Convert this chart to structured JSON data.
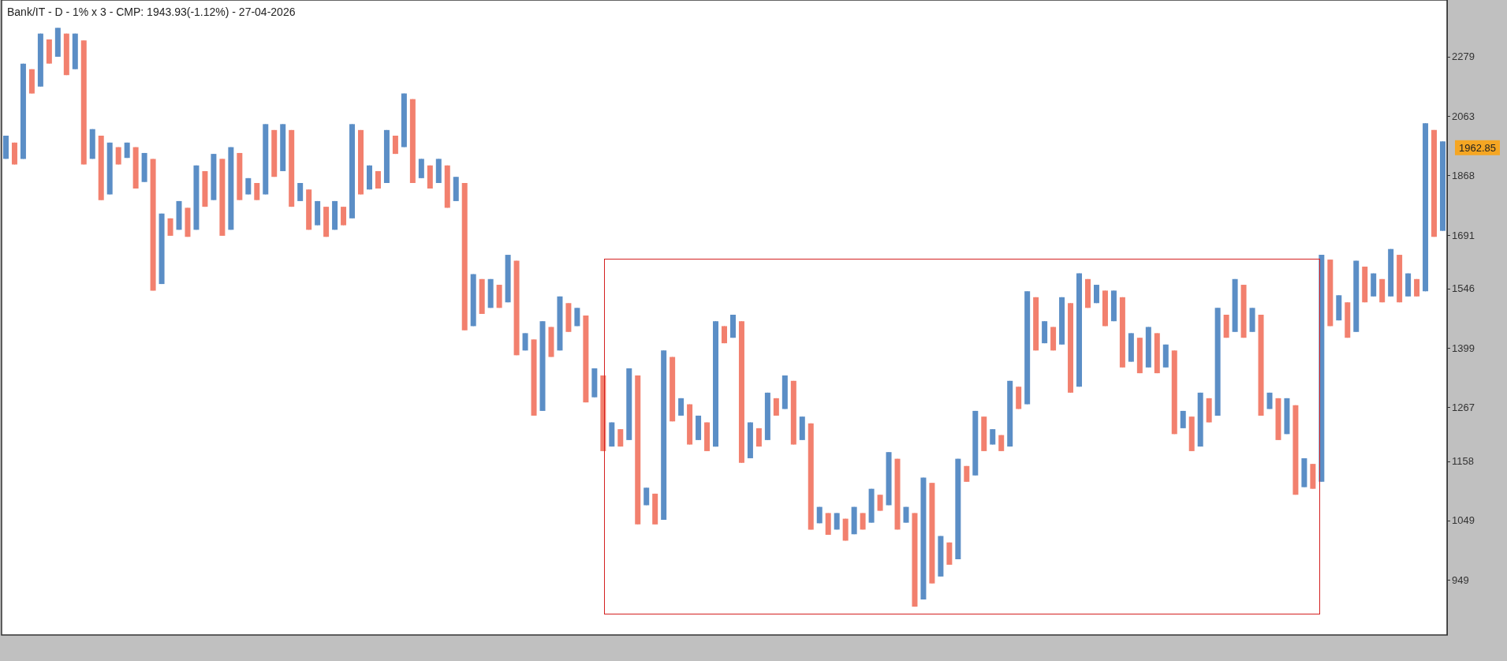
{
  "chart_data": {
    "type": "candlestick",
    "title": "Bank/IT - D - 1% x 3 - CMP: 1943.93(-1.12%) - 27-04-2026",
    "categories": [
      null,
      null,
      null,
      null,
      null,
      null,
      null,
      null,
      null,
      null,
      null,
      null,
      null,
      null,
      null,
      null,
      null,
      null,
      null,
      null,
      null,
      null,
      null,
      null,
      null,
      null,
      null,
      null,
      null,
      null,
      null,
      null,
      null,
      null,
      null,
      null,
      null,
      null,
      null,
      null,
      null,
      null,
      null,
      null,
      null,
      null,
      null,
      null,
      null,
      null,
      null,
      null,
      null,
      null,
      null,
      null,
      null,
      null,
      null,
      null,
      null,
      null,
      null,
      null,
      null,
      null,
      null,
      null,
      null,
      null,
      null,
      null,
      null,
      null,
      null,
      null,
      null,
      null,
      null,
      null,
      null,
      null,
      null,
      null,
      null,
      null,
      null,
      null,
      null,
      null,
      null,
      null,
      null,
      null,
      null,
      null,
      null,
      null,
      null,
      null,
      null,
      null,
      null,
      null,
      null,
      null,
      null,
      null,
      null,
      null,
      null,
      null,
      null,
      null,
      null,
      null,
      null,
      null,
      null,
      null,
      null,
      null,
      null,
      null,
      null,
      null,
      null,
      null,
      null,
      null,
      null,
      null,
      null,
      null,
      null,
      null,
      null,
      null,
      null,
      null,
      null,
      null,
      null,
      null,
      null,
      null,
      null,
      null,
      null,
      null,
      null,
      null,
      null,
      null,
      null,
      null,
      null,
      null,
      null,
      null,
      null,
      null,
      null,
      null,
      null,
      null,
      null
    ],
    "ohlc": [
      [
        1921,
        1997,
        1921,
        1997
      ],
      [
        1974,
        1974,
        1903,
        1903
      ],
      [
        1921,
        2253,
        1921,
        2253
      ],
      [
        2232,
        2232,
        2143,
        2143
      ],
      [
        2168,
        2369,
        2168,
        2369
      ],
      [
        2346,
        2346,
        2253,
        2253
      ],
      [
        2279,
        2392,
        2279,
        2392
      ],
      [
        2369,
        2369,
        2210,
        2210
      ],
      [
        2232,
        2369,
        2232,
        2369
      ],
      [
        2342,
        2342,
        1903,
        1903
      ],
      [
        1921,
        2019,
        1921,
        2019
      ],
      [
        1997,
        1997,
        1793,
        1793
      ],
      [
        1810,
        1974,
        1810,
        1974
      ],
      [
        1959,
        1959,
        1903,
        1903
      ],
      [
        1924,
        1974,
        1924,
        1974
      ],
      [
        1959,
        1959,
        1828,
        1828
      ],
      [
        1848,
        1940,
        1848,
        1940
      ],
      [
        1921,
        1921,
        1541,
        1541
      ],
      [
        1558,
        1753,
        1558,
        1753
      ],
      [
        1739,
        1739,
        1689,
        1689
      ],
      [
        1706,
        1790,
        1706,
        1790
      ],
      [
        1770,
        1770,
        1686,
        1686
      ],
      [
        1706,
        1900,
        1706,
        1900
      ],
      [
        1882,
        1882,
        1773,
        1773
      ],
      [
        1793,
        1937,
        1793,
        1937
      ],
      [
        1921,
        1921,
        1689,
        1689
      ],
      [
        1706,
        1959,
        1706,
        1959
      ],
      [
        1940,
        1940,
        1793,
        1793
      ],
      [
        1810,
        1860,
        1810,
        1860
      ],
      [
        1845,
        1845,
        1793,
        1793
      ],
      [
        1810,
        2036,
        1810,
        2036
      ],
      [
        2016,
        2016,
        1864,
        1864
      ],
      [
        1882,
        2036,
        1882,
        2036
      ],
      [
        2016,
        2016,
        1773,
        1773
      ],
      [
        1790,
        1845,
        1790,
        1845
      ],
      [
        1825,
        1825,
        1706,
        1706
      ],
      [
        1719,
        1790,
        1719,
        1790
      ],
      [
        1773,
        1773,
        1686,
        1686
      ],
      [
        1706,
        1790,
        1706,
        1790
      ],
      [
        1773,
        1773,
        1719,
        1719
      ],
      [
        1739,
        2036,
        1739,
        2036
      ],
      [
        2016,
        2016,
        1810,
        1810
      ],
      [
        1825,
        1900,
        1825,
        1900
      ],
      [
        1882,
        1882,
        1828,
        1828
      ],
      [
        1845,
        2016,
        1845,
        2016
      ],
      [
        1997,
        1997,
        1937,
        1937
      ],
      [
        1959,
        2143,
        1959,
        2143
      ],
      [
        2123,
        2123,
        1845,
        1845
      ],
      [
        1860,
        1921,
        1860,
        1921
      ],
      [
        1900,
        1900,
        1828,
        1828
      ],
      [
        1845,
        1921,
        1845,
        1921
      ],
      [
        1900,
        1900,
        1770,
        1770
      ],
      [
        1790,
        1864,
        1790,
        1864
      ],
      [
        1845,
        1845,
        1442,
        1442
      ],
      [
        1452,
        1584,
        1452,
        1584
      ],
      [
        1571,
        1571,
        1482,
        1482
      ],
      [
        1497,
        1571,
        1497,
        1571
      ],
      [
        1556,
        1556,
        1497,
        1497
      ],
      [
        1511,
        1636,
        1511,
        1636
      ],
      [
        1620,
        1620,
        1383,
        1383
      ],
      [
        1394,
        1435,
        1394,
        1435
      ],
      [
        1420,
        1420,
        1250,
        1250
      ],
      [
        1260,
        1464,
        1260,
        1464
      ],
      [
        1450,
        1450,
        1379,
        1379
      ],
      [
        1394,
        1526,
        1394,
        1526
      ],
      [
        1509,
        1509,
        1438,
        1438
      ],
      [
        1452,
        1497,
        1452,
        1497
      ],
      [
        1478,
        1478,
        1278,
        1278
      ],
      [
        1289,
        1353,
        1289,
        1353
      ],
      [
        1337,
        1337,
        1178,
        1178
      ],
      [
        1187,
        1236,
        1187,
        1236
      ],
      [
        1222,
        1222,
        1187,
        1187
      ],
      [
        1200,
        1353,
        1200,
        1353
      ],
      [
        1337,
        1337,
        1042,
        1042
      ],
      [
        1076,
        1108,
        1076,
        1108
      ],
      [
        1097,
        1097,
        1042,
        1042
      ],
      [
        1050,
        1394,
        1050,
        1394
      ],
      [
        1379,
        1379,
        1238,
        1238
      ],
      [
        1250,
        1287,
        1250,
        1287
      ],
      [
        1274,
        1274,
        1191,
        1191
      ],
      [
        1200,
        1250,
        1200,
        1250
      ],
      [
        1236,
        1236,
        1178,
        1178
      ],
      [
        1187,
        1464,
        1187,
        1464
      ],
      [
        1452,
        1452,
        1411,
        1411
      ],
      [
        1424,
        1480,
        1424,
        1480
      ],
      [
        1464,
        1464,
        1155,
        1155
      ],
      [
        1164,
        1236,
        1164,
        1236
      ],
      [
        1224,
        1224,
        1187,
        1187
      ],
      [
        1200,
        1299,
        1200,
        1299
      ],
      [
        1287,
        1287,
        1250,
        1250
      ],
      [
        1264,
        1337,
        1264,
        1337
      ],
      [
        1325,
        1325,
        1191,
        1191
      ],
      [
        1200,
        1248,
        1200,
        1248
      ],
      [
        1234,
        1234,
        1033,
        1033
      ],
      [
        1044,
        1073,
        1044,
        1073
      ],
      [
        1062,
        1062,
        1024,
        1024
      ],
      [
        1033,
        1062,
        1033,
        1062
      ],
      [
        1052,
        1052,
        1014,
        1014
      ],
      [
        1025,
        1073,
        1025,
        1073
      ],
      [
        1062,
        1062,
        1033,
        1033
      ],
      [
        1045,
        1106,
        1045,
        1106
      ],
      [
        1095,
        1095,
        1066,
        1066
      ],
      [
        1076,
        1176,
        1076,
        1176
      ],
      [
        1163,
        1163,
        1033,
        1033
      ],
      [
        1045,
        1073,
        1045,
        1073
      ],
      [
        1062,
        1062,
        908,
        908
      ],
      [
        919,
        1127,
        919,
        1127
      ],
      [
        1117,
        1117,
        944,
        944
      ],
      [
        955,
        1022,
        955,
        1022
      ],
      [
        1011,
        1011,
        974,
        974
      ],
      [
        983,
        1163,
        983,
        1163
      ],
      [
        1149,
        1149,
        1119,
        1119
      ],
      [
        1131,
        1260,
        1131,
        1260
      ],
      [
        1248,
        1248,
        1178,
        1178
      ],
      [
        1191,
        1222,
        1191,
        1222
      ],
      [
        1210,
        1210,
        1178,
        1178
      ],
      [
        1187,
        1325,
        1187,
        1325
      ],
      [
        1312,
        1312,
        1264,
        1264
      ],
      [
        1274,
        1539,
        1274,
        1539
      ],
      [
        1524,
        1524,
        1394,
        1394
      ],
      [
        1411,
        1464,
        1411,
        1464
      ],
      [
        1450,
        1450,
        1394,
        1394
      ],
      [
        1408,
        1524,
        1408,
        1524
      ],
      [
        1509,
        1509,
        1299,
        1299
      ],
      [
        1312,
        1586,
        1312,
        1586
      ],
      [
        1571,
        1571,
        1497,
        1497
      ],
      [
        1509,
        1556,
        1509,
        1556
      ],
      [
        1541,
        1541,
        1452,
        1452
      ],
      [
        1464,
        1541,
        1464,
        1541
      ],
      [
        1524,
        1524,
        1355,
        1355
      ],
      [
        1368,
        1435,
        1368,
        1435
      ],
      [
        1424,
        1424,
        1342,
        1342
      ],
      [
        1355,
        1450,
        1355,
        1450
      ],
      [
        1435,
        1435,
        1342,
        1342
      ],
      [
        1355,
        1408,
        1355,
        1408
      ],
      [
        1394,
        1394,
        1212,
        1212
      ],
      [
        1224,
        1260,
        1224,
        1260
      ],
      [
        1248,
        1248,
        1178,
        1178
      ],
      [
        1187,
        1299,
        1187,
        1299
      ],
      [
        1287,
        1287,
        1236,
        1236
      ],
      [
        1250,
        1497,
        1250,
        1497
      ],
      [
        1480,
        1480,
        1424,
        1424
      ],
      [
        1438,
        1571,
        1438,
        1571
      ],
      [
        1556,
        1556,
        1424,
        1424
      ],
      [
        1438,
        1497,
        1438,
        1497
      ],
      [
        1480,
        1480,
        1250,
        1250
      ],
      [
        1264,
        1299,
        1264,
        1299
      ],
      [
        1287,
        1287,
        1200,
        1200
      ],
      [
        1212,
        1287,
        1212,
        1287
      ],
      [
        1272,
        1272,
        1095,
        1095
      ],
      [
        1109,
        1164,
        1109,
        1164
      ],
      [
        1153,
        1153,
        1106,
        1106
      ],
      [
        1119,
        1636,
        1119,
        1636
      ],
      [
        1623,
        1623,
        1452,
        1452
      ],
      [
        1466,
        1529,
        1466,
        1529
      ],
      [
        1511,
        1511,
        1424,
        1424
      ],
      [
        1438,
        1620,
        1438,
        1620
      ],
      [
        1604,
        1604,
        1511,
        1511
      ],
      [
        1526,
        1586,
        1526,
        1586
      ],
      [
        1571,
        1571,
        1511,
        1511
      ],
      [
        1526,
        1652,
        1526,
        1652
      ],
      [
        1636,
        1636,
        1511,
        1511
      ],
      [
        1526,
        1586,
        1526,
        1586
      ],
      [
        1571,
        1571,
        1526,
        1526
      ],
      [
        1539,
        2039,
        1539,
        2039
      ],
      [
        2016,
        2016,
        1686,
        1686
      ],
      [
        1703,
        1978,
        1703,
        1978
      ]
    ],
    "colors": [
      "#5b8ec6",
      "#f2806e",
      "#5b8ec6",
      "#f2806e",
      "#5b8ec6",
      "#f2806e",
      "#5b8ec6",
      "#f2806e",
      "#5b8ec6",
      "#f2806e",
      "#5b8ec6",
      "#f2806e",
      "#5b8ec6",
      "#f2806e",
      "#5b8ec6",
      "#f2806e",
      "#5b8ec6",
      "#f2806e",
      "#5b8ec6",
      "#f2806e",
      "#5b8ec6",
      "#f2806e",
      "#5b8ec6",
      "#f2806e",
      "#5b8ec6",
      "#f2806e",
      "#5b8ec6",
      "#f2806e",
      "#5b8ec6",
      "#f2806e",
      "#5b8ec6",
      "#f2806e",
      "#5b8ec6",
      "#f2806e",
      "#5b8ec6",
      "#f2806e",
      "#5b8ec6",
      "#f2806e",
      "#5b8ec6",
      "#f2806e",
      "#5b8ec6",
      "#f2806e",
      "#5b8ec6",
      "#f2806e",
      "#5b8ec6",
      "#f2806e",
      "#5b8ec6",
      "#f2806e",
      "#5b8ec6",
      "#f2806e",
      "#5b8ec6",
      "#f2806e",
      "#5b8ec6",
      "#f2806e",
      "#5b8ec6",
      "#f2806e",
      "#5b8ec6",
      "#f2806e",
      "#5b8ec6",
      "#f2806e",
      "#5b8ec6",
      "#f2806e",
      "#5b8ec6",
      "#f2806e",
      "#5b8ec6",
      "#f2806e",
      "#5b8ec6",
      "#f2806e",
      "#5b8ec6",
      "#f2806e",
      "#5b8ec6",
      "#f2806e",
      "#5b8ec6",
      "#f2806e",
      "#5b8ec6",
      "#f2806e",
      "#5b8ec6",
      "#f2806e",
      "#5b8ec6",
      "#f2806e",
      "#5b8ec6",
      "#f2806e",
      "#5b8ec6",
      "#f2806e",
      "#5b8ec6",
      "#f2806e",
      "#5b8ec6",
      "#f2806e",
      "#5b8ec6",
      "#f2806e",
      "#5b8ec6",
      "#f2806e",
      "#5b8ec6",
      "#f2806e",
      "#5b8ec6",
      "#f2806e",
      "#5b8ec6",
      "#f2806e",
      "#5b8ec6",
      "#f2806e",
      "#5b8ec6",
      "#f2806e",
      "#5b8ec6",
      "#f2806e",
      "#5b8ec6",
      "#f2806e",
      "#5b8ec6",
      "#f2806e",
      "#5b8ec6",
      "#f2806e",
      "#5b8ec6",
      "#f2806e",
      "#5b8ec6",
      "#f2806e",
      "#5b8ec6",
      "#f2806e",
      "#5b8ec6",
      "#f2806e",
      "#5b8ec6",
      "#f2806e",
      "#5b8ec6",
      "#f2806e",
      "#5b8ec6",
      "#f2806e",
      "#5b8ec6",
      "#f2806e",
      "#5b8ec6",
      "#f2806e",
      "#5b8ec6",
      "#f2806e",
      "#5b8ec6",
      "#f2806e",
      "#5b8ec6",
      "#f2806e",
      "#5b8ec6",
      "#f2806e",
      "#5b8ec6",
      "#f2806e",
      "#5b8ec6",
      "#f2806e",
      "#5b8ec6",
      "#f2806e",
      "#5b8ec6",
      "#f2806e",
      "#5b8ec6",
      "#f2806e",
      "#5b8ec6",
      "#f2806e",
      "#5b8ec6",
      "#f2806e",
      "#5b8ec6",
      "#f2806e",
      "#5b8ec6",
      "#f2806e",
      "#5b8ec6",
      "#f2806e",
      "#5b8ec6",
      "#f2806e",
      "#5b8ec6",
      "#f2806e",
      "#5b8ec6",
      "#f2806e",
      "#5b8ec6",
      "#f2806e",
      "#5b8ec6",
      "#f2806e",
      "#5b8ec6"
    ],
    "log": "y",
    "ylim": [
      866,
      2506
    ],
    "yticks": [
      949,
      1049,
      1158,
      1267,
      1399,
      1546,
      1691,
      1868,
      2063,
      2279
    ],
    "tick_labels": "y",
    "annotations": [
      "1962.85"
    ]
  }
}
